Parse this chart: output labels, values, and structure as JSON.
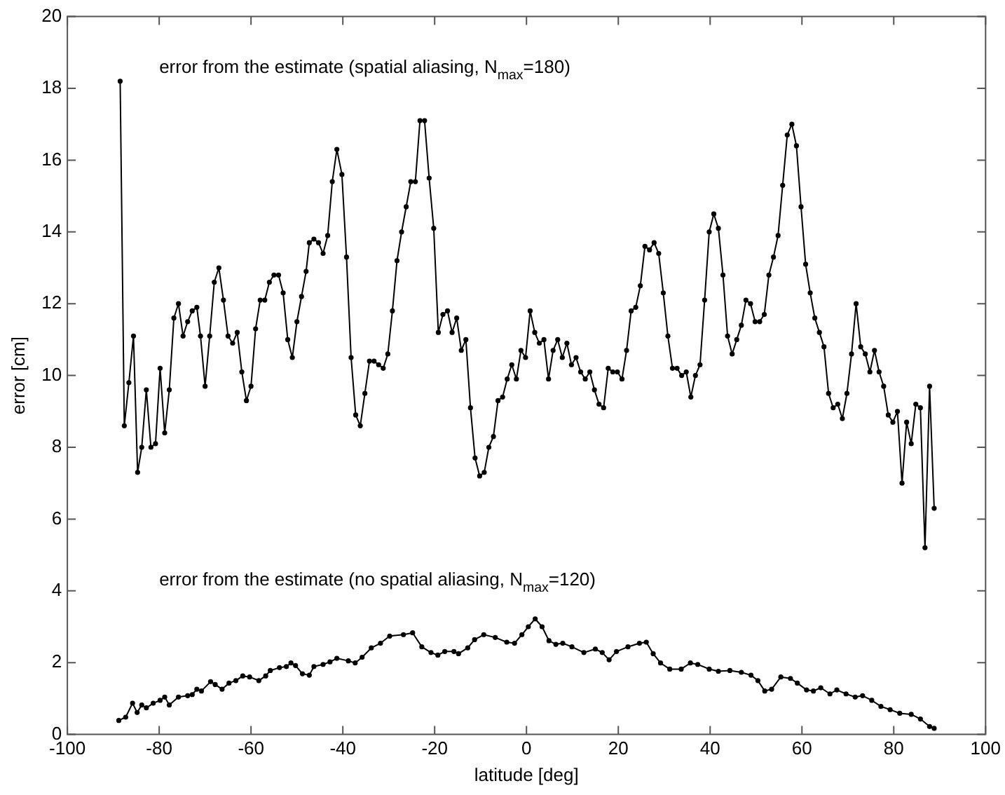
{
  "chart_data": {
    "type": "line",
    "xlabel": "latitude [deg]",
    "ylabel": "error [cm]",
    "xlim": [
      -100,
      100
    ],
    "xticks": [
      -100,
      -80,
      -60,
      -40,
      -20,
      0,
      20,
      40,
      60,
      80,
      100
    ],
    "ylim": [
      0,
      20
    ],
    "yticks": [
      0,
      2,
      4,
      6,
      8,
      10,
      12,
      14,
      16,
      18,
      20
    ],
    "marker": "circle",
    "line_style": "solid",
    "series": [
      {
        "name": "error from the estimate (spatial aliasing, N$_{max}$=180)",
        "color": "#000000",
        "x": [
          -88.5,
          -87.6,
          -86.6,
          -85.6,
          -84.7,
          -83.8,
          -82.8,
          -81.8,
          -80.8,
          -79.8,
          -78.8,
          -77.8,
          -76.8,
          -75.8,
          -74.8,
          -73.8,
          -72.8,
          -71.8,
          -71.0,
          -70.0,
          -69.0,
          -68.0,
          -67.0,
          -66.0,
          -65.0,
          -64.0,
          -63.0,
          -62.0,
          -61.0,
          -60.0,
          -59.0,
          -58.0,
          -57.0,
          -56.0,
          -55.0,
          -54.0,
          -53.0,
          -52.0,
          -51.0,
          -50.0,
          -49.0,
          -48.0,
          -47.3,
          -46.3,
          -45.3,
          -44.3,
          -43.3,
          -42.3,
          -41.3,
          -40.2,
          -39.2,
          -38.2,
          -37.2,
          -36.2,
          -35.2,
          -34.2,
          -33.2,
          -32.2,
          -31.2,
          -30.2,
          -29.2,
          -28.2,
          -27.2,
          -26.2,
          -25.2,
          -24.2,
          -23.2,
          -22.2,
          -21.2,
          -20.2,
          -19.2,
          -18.2,
          -17.2,
          -16.2,
          -15.2,
          -14.2,
          -13.2,
          -12.2,
          -11.2,
          -10.2,
          -9.2,
          -8.2,
          -7.2,
          -6.2,
          -5.2,
          -4.2,
          -3.2,
          -2.2,
          -1.2,
          -0.2,
          0.8,
          1.8,
          2.8,
          3.8,
          4.8,
          5.8,
          6.8,
          7.8,
          8.8,
          9.8,
          10.8,
          11.8,
          12.8,
          13.8,
          14.8,
          15.8,
          16.8,
          17.8,
          18.8,
          19.8,
          20.8,
          21.8,
          22.8,
          23.8,
          24.8,
          25.8,
          26.8,
          27.8,
          28.8,
          29.8,
          30.8,
          31.8,
          32.8,
          33.8,
          34.8,
          35.8,
          36.8,
          37.8,
          38.8,
          39.8,
          40.8,
          41.8,
          42.8,
          43.8,
          44.8,
          45.8,
          46.8,
          47.8,
          48.8,
          49.8,
          50.8,
          51.8,
          52.8,
          53.8,
          54.8,
          55.8,
          56.8,
          57.8,
          58.8,
          59.8,
          60.8,
          61.8,
          62.8,
          63.8,
          64.8,
          65.8,
          66.8,
          67.8,
          68.8,
          69.8,
          70.8,
          71.8,
          72.8,
          73.8,
          74.8,
          75.8,
          76.8,
          77.8,
          78.8,
          79.8,
          80.8,
          81.8,
          82.8,
          83.8,
          84.8,
          85.8,
          86.8,
          87.8,
          88.8
        ],
        "values": [
          18.2,
          8.6,
          9.8,
          11.1,
          7.3,
          8.0,
          9.6,
          8.0,
          8.1,
          10.2,
          8.4,
          9.6,
          11.6,
          12.0,
          11.1,
          11.5,
          11.8,
          11.9,
          11.1,
          9.7,
          11.1,
          12.6,
          13.0,
          12.1,
          11.1,
          10.9,
          11.2,
          10.1,
          9.3,
          9.7,
          11.3,
          12.1,
          12.1,
          12.6,
          12.8,
          12.8,
          12.3,
          11.0,
          10.5,
          11.5,
          12.2,
          12.9,
          13.7,
          13.8,
          13.7,
          13.4,
          13.9,
          15.4,
          16.3,
          15.6,
          13.3,
          10.5,
          8.9,
          8.6,
          9.5,
          10.4,
          10.4,
          10.3,
          10.2,
          10.6,
          11.8,
          13.2,
          14.0,
          14.7,
          15.4,
          15.4,
          17.1,
          17.1,
          15.5,
          14.1,
          11.2,
          11.7,
          11.8,
          11.2,
          11.6,
          10.7,
          11.0,
          9.1,
          7.7,
          7.2,
          7.3,
          8.0,
          8.3,
          9.3,
          9.4,
          9.9,
          10.3,
          9.9,
          10.7,
          10.5,
          11.8,
          11.2,
          10.9,
          11.0,
          9.9,
          10.7,
          11.0,
          10.5,
          10.9,
          10.3,
          10.5,
          10.1,
          9.9,
          10.1,
          9.6,
          9.2,
          9.1,
          10.2,
          10.1,
          10.1,
          9.9,
          10.7,
          11.8,
          11.9,
          12.5,
          13.6,
          13.5,
          13.7,
          13.4,
          12.3,
          11.1,
          10.2,
          10.2,
          10.0,
          10.1,
          9.4,
          10.0,
          10.3,
          12.1,
          14.0,
          14.5,
          14.1,
          12.8,
          11.1,
          10.6,
          11.0,
          11.4,
          12.1,
          12.0,
          11.5,
          11.5,
          11.7,
          12.8,
          13.3,
          13.9,
          15.3,
          16.7,
          17.0,
          16.4,
          14.7,
          13.1,
          12.3,
          11.6,
          11.2,
          10.8,
          9.5,
          9.1,
          9.2,
          8.8,
          9.5,
          10.6,
          12.0,
          10.8,
          10.6,
          10.1,
          10.7,
          10.1,
          9.7,
          8.9,
          8.7,
          9.0,
          7.0,
          8.7,
          8.1,
          9.2,
          9.1,
          5.2,
          9.7,
          6.3
        ]
      },
      {
        "name": "error from the estimate (no spatial aliasing, N$_{max}$=120)",
        "color": "#000000",
        "x": [
          -88.8,
          -87.3,
          -85.8,
          -84.8,
          -83.8,
          -82.8,
          -81.3,
          -79.8,
          -78.8,
          -77.8,
          -75.8,
          -73.8,
          -72.8,
          -71.8,
          -70.8,
          -68.8,
          -67.8,
          -66.3,
          -64.8,
          -63.3,
          -61.8,
          -60.3,
          -58.3,
          -56.8,
          -55.8,
          -53.8,
          -52.3,
          -51.3,
          -50.3,
          -48.8,
          -47.3,
          -46.3,
          -44.3,
          -42.8,
          -41.3,
          -38.8,
          -37.3,
          -35.8,
          -33.8,
          -31.8,
          -29.8,
          -26.8,
          -24.8,
          -22.8,
          -20.8,
          -19.3,
          -17.8,
          -15.8,
          -14.8,
          -12.8,
          -11.3,
          -9.3,
          -6.8,
          -4.3,
          -2.6,
          -1.0,
          0.4,
          1.9,
          3.4,
          4.9,
          6.4,
          7.9,
          9.9,
          12.5,
          15.0,
          16.5,
          18.0,
          19.6,
          22.1,
          24.6,
          26.1,
          27.6,
          29.2,
          31.2,
          33.7,
          35.7,
          37.3,
          39.8,
          41.8,
          44.3,
          46.8,
          48.9,
          50.4,
          51.9,
          53.4,
          55.4,
          57.5,
          59.0,
          61.0,
          62.5,
          64.1,
          66.1,
          67.6,
          69.6,
          71.6,
          73.2,
          75.2,
          77.2,
          79.2,
          81.3,
          83.8,
          85.8,
          87.8,
          88.8
        ],
        "values": [
          0.39,
          0.48,
          0.87,
          0.61,
          0.82,
          0.74,
          0.87,
          0.95,
          1.04,
          0.82,
          1.04,
          1.08,
          1.11,
          1.26,
          1.21,
          1.47,
          1.39,
          1.26,
          1.43,
          1.5,
          1.63,
          1.6,
          1.5,
          1.63,
          1.78,
          1.86,
          1.89,
          1.99,
          1.92,
          1.69,
          1.65,
          1.89,
          1.95,
          2.02,
          2.12,
          2.05,
          1.99,
          2.15,
          2.41,
          2.54,
          2.74,
          2.78,
          2.83,
          2.44,
          2.28,
          2.21,
          2.31,
          2.31,
          2.25,
          2.41,
          2.64,
          2.78,
          2.7,
          2.57,
          2.54,
          2.78,
          3.0,
          3.22,
          3.0,
          2.61,
          2.51,
          2.54,
          2.44,
          2.28,
          2.38,
          2.28,
          2.08,
          2.31,
          2.44,
          2.54,
          2.57,
          2.25,
          1.99,
          1.82,
          1.82,
          1.99,
          1.95,
          1.82,
          1.76,
          1.78,
          1.73,
          1.65,
          1.5,
          1.21,
          1.26,
          1.6,
          1.56,
          1.43,
          1.24,
          1.21,
          1.3,
          1.13,
          1.24,
          1.13,
          1.04,
          1.08,
          0.95,
          0.78,
          0.69,
          0.59,
          0.56,
          0.43,
          0.22,
          0.17
        ]
      }
    ]
  }
}
